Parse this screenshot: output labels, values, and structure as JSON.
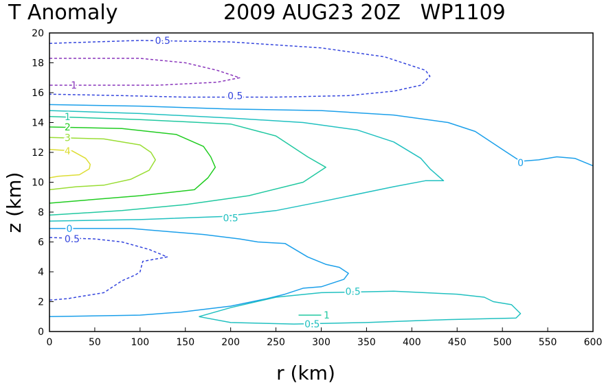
{
  "chart_data": {
    "type": "contour",
    "title_left": "T Anomaly",
    "title_right": "2009 AUG23 20Z   WP1109",
    "xlabel": "r (km)",
    "ylabel": "z (km)",
    "xlim": [
      0,
      600
    ],
    "ylim": [
      0,
      20
    ],
    "xticks": [
      0,
      50,
      100,
      150,
      200,
      250,
      300,
      350,
      400,
      450,
      500,
      550,
      600
    ],
    "yticks": [
      0,
      2,
      4,
      6,
      8,
      10,
      12,
      14,
      16,
      18,
      20
    ],
    "contours": [
      {
        "name": "contour-neg0.5-upper",
        "level": "-0.5",
        "color": "#3344dd",
        "dashed": true,
        "points": [
          [
            0,
            19.3
          ],
          [
            100,
            19.5
          ],
          [
            200,
            19.4
          ],
          [
            300,
            19.0
          ],
          [
            370,
            18.4
          ],
          [
            415,
            17.5
          ],
          [
            420,
            17.1
          ],
          [
            410,
            16.5
          ],
          [
            380,
            16.1
          ],
          [
            330,
            15.8
          ],
          [
            250,
            15.7
          ],
          [
            150,
            15.7
          ],
          [
            80,
            15.8
          ],
          [
            0,
            15.9
          ]
        ]
      },
      {
        "name": "contour-neg1-upper",
        "level": "-1",
        "color": "#8833bb",
        "dashed": true,
        "points": [
          [
            0,
            18.3
          ],
          [
            100,
            18.3
          ],
          [
            150,
            18.0
          ],
          [
            185,
            17.5
          ],
          [
            210,
            17.0
          ],
          [
            185,
            16.7
          ],
          [
            120,
            16.5
          ],
          [
            60,
            16.5
          ],
          [
            0,
            16.5
          ]
        ]
      },
      {
        "name": "contour-0-main",
        "level": "0",
        "color": "#1a9fea",
        "dashed": false,
        "points": [
          [
            0,
            15.2
          ],
          [
            100,
            15.1
          ],
          [
            200,
            14.9
          ],
          [
            300,
            14.8
          ],
          [
            380,
            14.5
          ],
          [
            440,
            14.0
          ],
          [
            470,
            13.4
          ],
          [
            500,
            12.2
          ],
          [
            520,
            11.4
          ],
          [
            540,
            11.5
          ],
          [
            560,
            11.7
          ],
          [
            580,
            11.6
          ],
          [
            600,
            11.1
          ]
        ]
      },
      {
        "name": "contour-0.5-main",
        "level": "0.5",
        "color": "#20c0c0",
        "dashed": false,
        "points": [
          [
            0,
            14.8
          ],
          [
            100,
            14.6
          ],
          [
            200,
            14.3
          ],
          [
            280,
            14.0
          ],
          [
            340,
            13.5
          ],
          [
            380,
            12.7
          ],
          [
            410,
            11.6
          ],
          [
            420,
            10.9
          ],
          [
            435,
            10.1
          ],
          [
            415,
            10.1
          ],
          [
            380,
            9.7
          ],
          [
            300,
            8.7
          ],
          [
            250,
            8.1
          ],
          [
            190,
            7.7
          ],
          [
            100,
            7.5
          ],
          [
            0,
            7.4
          ]
        ]
      },
      {
        "name": "contour-1-main",
        "level": "1",
        "color": "#20c8a0",
        "dashed": false,
        "points": [
          [
            0,
            14.4
          ],
          [
            100,
            14.2
          ],
          [
            200,
            13.9
          ],
          [
            250,
            13.1
          ],
          [
            285,
            11.7
          ],
          [
            305,
            11.0
          ],
          [
            280,
            10.0
          ],
          [
            220,
            9.1
          ],
          [
            150,
            8.5
          ],
          [
            80,
            8.1
          ],
          [
            0,
            7.8
          ]
        ]
      },
      {
        "name": "contour-2-main",
        "level": "2",
        "color": "#20cc20",
        "dashed": false,
        "points": [
          [
            0,
            13.7
          ],
          [
            80,
            13.6
          ],
          [
            140,
            13.2
          ],
          [
            170,
            12.4
          ],
          [
            178,
            11.7
          ],
          [
            183,
            11.0
          ],
          [
            175,
            10.3
          ],
          [
            160,
            9.5
          ],
          [
            100,
            9.1
          ],
          [
            40,
            8.8
          ],
          [
            0,
            8.6
          ]
        ]
      },
      {
        "name": "contour-3-main",
        "level": "3",
        "color": "#99dd33",
        "dashed": false,
        "points": [
          [
            0,
            13.0
          ],
          [
            60,
            12.9
          ],
          [
            100,
            12.5
          ],
          [
            112,
            12.0
          ],
          [
            117,
            11.5
          ],
          [
            110,
            10.8
          ],
          [
            90,
            10.2
          ],
          [
            60,
            9.8
          ],
          [
            30,
            9.7
          ],
          [
            0,
            9.5
          ]
        ]
      },
      {
        "name": "contour-4-main",
        "level": "4",
        "color": "#dddd33",
        "dashed": false,
        "points": [
          [
            0,
            12.2
          ],
          [
            25,
            12.1
          ],
          [
            40,
            11.6
          ],
          [
            45,
            11.2
          ],
          [
            44,
            10.9
          ],
          [
            33,
            10.5
          ],
          [
            10,
            10.4
          ],
          [
            0,
            10.3
          ]
        ]
      },
      {
        "name": "contour-0-lower",
        "level": "0",
        "color": "#1a9fea",
        "dashed": false,
        "points": [
          [
            0,
            6.9
          ],
          [
            90,
            6.9
          ],
          [
            170,
            6.5
          ],
          [
            210,
            6.2
          ],
          [
            230,
            6.0
          ],
          [
            260,
            5.9
          ],
          [
            285,
            5.0
          ],
          [
            305,
            4.5
          ],
          [
            320,
            4.3
          ],
          [
            330,
            3.9
          ],
          [
            325,
            3.5
          ],
          [
            300,
            3.0
          ],
          [
            280,
            2.9
          ],
          [
            260,
            2.5
          ],
          [
            240,
            2.2
          ],
          [
            200,
            1.7
          ],
          [
            145,
            1.3
          ],
          [
            100,
            1.1
          ],
          [
            0,
            1.0
          ]
        ]
      },
      {
        "name": "contour-neg0.5-lower",
        "level": "-0.5",
        "color": "#3344dd",
        "dashed": true,
        "points": [
          [
            0,
            6.3
          ],
          [
            50,
            6.2
          ],
          [
            80,
            6.0
          ],
          [
            110,
            5.5
          ],
          [
            130,
            5.0
          ],
          [
            103,
            4.7
          ],
          [
            100,
            4.0
          ],
          [
            95,
            3.8
          ],
          [
            80,
            3.4
          ],
          [
            60,
            2.6
          ],
          [
            20,
            2.2
          ],
          [
            0,
            2.1
          ]
        ]
      },
      {
        "name": "contour-0.5-lower",
        "level": "0.5",
        "color": "#20c0c0",
        "dashed": false,
        "points": [
          [
            165,
            1.0
          ],
          [
            200,
            1.6
          ],
          [
            250,
            2.3
          ],
          [
            300,
            2.6
          ],
          [
            380,
            2.7
          ],
          [
            450,
            2.5
          ],
          [
            480,
            2.3
          ],
          [
            490,
            2.0
          ],
          [
            510,
            1.8
          ],
          [
            520,
            1.2
          ],
          [
            515,
            0.9
          ],
          [
            440,
            0.8
          ],
          [
            350,
            0.6
          ],
          [
            270,
            0.5
          ],
          [
            200,
            0.6
          ],
          [
            165,
            1.0
          ]
        ]
      },
      {
        "name": "contour-1-lower",
        "level": "1",
        "color": "#20c8a0",
        "dashed": false,
        "points": [
          [
            275,
            1.1
          ],
          [
            300,
            1.1
          ]
        ]
      }
    ],
    "labels": [
      {
        "text": "0.5",
        "level": "-0.5-upper",
        "x": 125,
        "y": 19.5,
        "color": "#3344dd"
      },
      {
        "text": "1",
        "level": "-1-upper",
        "x": 27,
        "y": 16.5,
        "color": "#8833bb"
      },
      {
        "text": "0.5",
        "level": "-0.5-upper",
        "x": 205,
        "y": 15.8,
        "color": "#3344dd"
      },
      {
        "text": "1",
        "level": "1",
        "x": 20,
        "y": 14.4,
        "color": "#20c8a0"
      },
      {
        "text": "2",
        "level": "2",
        "x": 20,
        "y": 13.7,
        "color": "#20cc20"
      },
      {
        "text": "3",
        "level": "3",
        "x": 20,
        "y": 13.0,
        "color": "#99dd33"
      },
      {
        "text": "4",
        "level": "4",
        "x": 20,
        "y": 12.1,
        "color": "#dddd33"
      },
      {
        "text": "0",
        "level": "0",
        "x": 520,
        "y": 11.3,
        "color": "#1a9fea"
      },
      {
        "text": "0.5",
        "level": "0.5",
        "x": 200,
        "y": 7.6,
        "color": "#20c0c0"
      },
      {
        "text": "0",
        "level": "0-lower",
        "x": 22,
        "y": 6.9,
        "color": "#1a9fea"
      },
      {
        "text": "0.5",
        "level": "-0.5-lower",
        "x": 25,
        "y": 6.2,
        "color": "#3344dd"
      },
      {
        "text": "0.5",
        "level": "0.5-lower",
        "x": 335,
        "y": 2.7,
        "color": "#20c0c0"
      },
      {
        "text": "1",
        "level": "1-lower",
        "x": 306,
        "y": 1.1,
        "color": "#20c8a0"
      },
      {
        "text": "0.5",
        "level": "0.5-lower",
        "x": 290,
        "y": 0.5,
        "color": "#20c0c0"
      }
    ]
  }
}
